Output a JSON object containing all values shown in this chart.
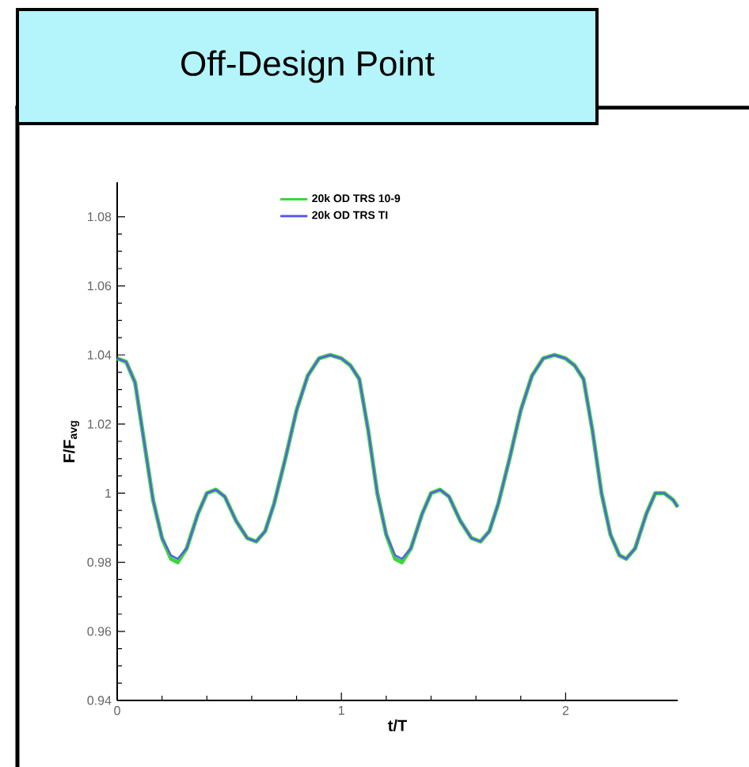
{
  "chart_data": {
    "type": "line",
    "title": "Off-Design Point",
    "xlabel": "t/T",
    "ylabel": "F/F$_{avg}$",
    "legend": "top",
    "xlim": [
      0,
      2.5
    ],
    "ylim": [
      0.94,
      1.09
    ],
    "xticks": [
      0,
      1,
      2
    ],
    "yticks": [
      0.94,
      0.96,
      0.98,
      1,
      1.02,
      1.04,
      1.06,
      1.08
    ],
    "x": [
      0,
      0.04,
      0.08,
      0.12,
      0.16,
      0.2,
      0.24,
      0.27,
      0.31,
      0.36,
      0.4,
      0.44,
      0.48,
      0.53,
      0.58,
      0.62,
      0.66,
      0.7,
      0.75,
      0.8,
      0.85,
      0.9,
      0.95,
      1.0,
      1.04,
      1.08,
      1.12,
      1.16,
      1.2,
      1.24,
      1.27,
      1.31,
      1.36,
      1.4,
      1.44,
      1.48,
      1.53,
      1.58,
      1.62,
      1.66,
      1.7,
      1.75,
      1.8,
      1.85,
      1.9,
      1.95,
      2.0,
      2.04,
      2.08,
      2.12,
      2.16,
      2.2,
      2.24,
      2.27,
      2.31,
      2.36,
      2.4,
      2.44,
      2.48,
      2.5
    ],
    "series": [
      {
        "name": "20k OD TRS 10-9",
        "color": "#3cd63c",
        "values": [
          1.039,
          1.038,
          1.032,
          1.015,
          0.998,
          0.987,
          0.981,
          0.98,
          0.984,
          0.994,
          1.0,
          1.001,
          0.999,
          0.992,
          0.987,
          0.986,
          0.989,
          0.997,
          1.01,
          1.024,
          1.034,
          1.039,
          1.04,
          1.039,
          1.037,
          1.033,
          1.018,
          1.0,
          0.988,
          0.981,
          0.98,
          0.984,
          0.994,
          1.0,
          1.001,
          0.999,
          0.992,
          0.987,
          0.986,
          0.989,
          0.997,
          1.01,
          1.024,
          1.034,
          1.039,
          1.04,
          1.039,
          1.037,
          1.033,
          1.018,
          1.0,
          0.988,
          0.982,
          0.981,
          0.984,
          0.994,
          1.0,
          1.0,
          0.998,
          0.996
        ]
      },
      {
        "name": "20k OD TRS TI",
        "color": "#5a5af0",
        "values": [
          1.039,
          1.038,
          1.032,
          1.015,
          0.998,
          0.987,
          0.982,
          0.981,
          0.984,
          0.994,
          1.0,
          1.001,
          0.999,
          0.992,
          0.987,
          0.986,
          0.989,
          0.997,
          1.01,
          1.024,
          1.034,
          1.039,
          1.04,
          1.039,
          1.037,
          1.033,
          1.018,
          1.0,
          0.988,
          0.982,
          0.981,
          0.984,
          0.994,
          1.0,
          1.001,
          0.999,
          0.992,
          0.987,
          0.986,
          0.989,
          0.997,
          1.01,
          1.024,
          1.034,
          1.039,
          1.04,
          1.039,
          1.037,
          1.033,
          1.018,
          1.0,
          0.988,
          0.982,
          0.981,
          0.984,
          0.994,
          1.0,
          1.0,
          0.998,
          0.996
        ]
      }
    ]
  }
}
